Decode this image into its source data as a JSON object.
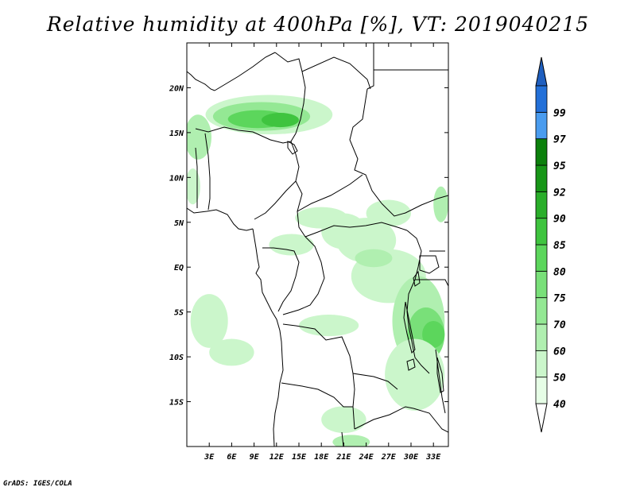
{
  "title": "Relative humidity at 400hPa [%], VT: 2019040215",
  "credit": "GrADS: IGES/COLA",
  "map": {
    "lon_range": [
      0,
      35
    ],
    "lat_range": [
      -20,
      25
    ],
    "lon_ticks": [
      {
        "value": 3,
        "label": "3E"
      },
      {
        "value": 6,
        "label": "6E"
      },
      {
        "value": 9,
        "label": "9E"
      },
      {
        "value": 12,
        "label": "12E"
      },
      {
        "value": 15,
        "label": "15E"
      },
      {
        "value": 18,
        "label": "18E"
      },
      {
        "value": 21,
        "label": "21E"
      },
      {
        "value": 24,
        "label": "24E"
      },
      {
        "value": 27,
        "label": "27E"
      },
      {
        "value": 30,
        "label": "30E"
      },
      {
        "value": 33,
        "label": "33E"
      }
    ],
    "lat_ticks": [
      {
        "value": 20,
        "label": "20N"
      },
      {
        "value": 15,
        "label": "15N"
      },
      {
        "value": 10,
        "label": "10N"
      },
      {
        "value": 5,
        "label": "5N"
      },
      {
        "value": 0,
        "label": "EQ"
      },
      {
        "value": -5,
        "label": "5S"
      },
      {
        "value": -10,
        "label": "10S"
      },
      {
        "value": -15,
        "label": "15S"
      }
    ]
  },
  "colorbar": {
    "levels": [
      {
        "label": "40",
        "color": "#e6fde6"
      },
      {
        "label": "50",
        "color": "#cbf6cb"
      },
      {
        "label": "60",
        "color": "#b0efb0"
      },
      {
        "label": "70",
        "color": "#94e894"
      },
      {
        "label": "75",
        "color": "#79e079"
      },
      {
        "label": "80",
        "color": "#5cd65c"
      },
      {
        "label": "85",
        "color": "#3fc43f"
      },
      {
        "label": "90",
        "color": "#2aae2a"
      },
      {
        "label": "92",
        "color": "#179617"
      },
      {
        "label": "95",
        "color": "#0c800c"
      },
      {
        "label": "97",
        "color": "#4a9cef"
      },
      {
        "label": "99",
        "color": "#2370d8"
      }
    ],
    "top_arrow_color": "#1f5fbf",
    "bottom_arrow_color": "#ffffff"
  },
  "humidity_patches": [
    {
      "lon": 11,
      "lat": 17,
      "rx": 8.5,
      "ry": 2.2,
      "level": 1
    },
    {
      "lon": 10,
      "lat": 16.8,
      "rx": 6.5,
      "ry": 1.6,
      "level": 3
    },
    {
      "lon": 9.5,
      "lat": 16.5,
      "rx": 4,
      "ry": 1.0,
      "level": 5
    },
    {
      "lon": 12.5,
      "lat": 16.4,
      "rx": 2.5,
      "ry": 0.8,
      "level": 6
    },
    {
      "lon": 1.5,
      "lat": 14.5,
      "rx": 1.8,
      "ry": 2.5,
      "level": 2
    },
    {
      "lon": 0.8,
      "lat": 9,
      "rx": 1.0,
      "ry": 2.0,
      "level": 1
    },
    {
      "lon": 18,
      "lat": 5.5,
      "rx": 3.5,
      "ry": 1.2,
      "level": 1
    },
    {
      "lon": 21,
      "lat": 4,
      "rx": 3,
      "ry": 2,
      "level": 1
    },
    {
      "lon": 27,
      "lat": 6,
      "rx": 3,
      "ry": 1.5,
      "level": 1
    },
    {
      "lon": 34,
      "lat": 7,
      "rx": 1.0,
      "ry": 2.0,
      "level": 2
    },
    {
      "lon": 24,
      "lat": 3,
      "rx": 4,
      "ry": 2.5,
      "level": 1
    },
    {
      "lon": 14,
      "lat": 2.5,
      "rx": 3,
      "ry": 1.2,
      "level": 1
    },
    {
      "lon": 27,
      "lat": -1,
      "rx": 5,
      "ry": 3,
      "level": 1
    },
    {
      "lon": 25,
      "lat": 1,
      "rx": 2.5,
      "ry": 1.0,
      "level": 2
    },
    {
      "lon": 31,
      "lat": -6,
      "rx": 3.5,
      "ry": 5,
      "level": 2
    },
    {
      "lon": 32,
      "lat": -7.5,
      "rx": 2.5,
      "ry": 3,
      "level": 4
    },
    {
      "lon": 33,
      "lat": -7.5,
      "rx": 1.5,
      "ry": 1.5,
      "level": 5
    },
    {
      "lon": 30.5,
      "lat": -12,
      "rx": 4,
      "ry": 4,
      "level": 1
    },
    {
      "lon": 3,
      "lat": -6,
      "rx": 2.5,
      "ry": 3,
      "level": 1
    },
    {
      "lon": 6,
      "lat": -9.5,
      "rx": 3,
      "ry": 1.5,
      "level": 1
    },
    {
      "lon": 19,
      "lat": -6.5,
      "rx": 4,
      "ry": 1.2,
      "level": 1
    },
    {
      "lon": 21,
      "lat": -17,
      "rx": 3,
      "ry": 1.5,
      "level": 1
    },
    {
      "lon": 22,
      "lat": -19.5,
      "rx": 2.5,
      "ry": 0.8,
      "level": 2
    }
  ]
}
